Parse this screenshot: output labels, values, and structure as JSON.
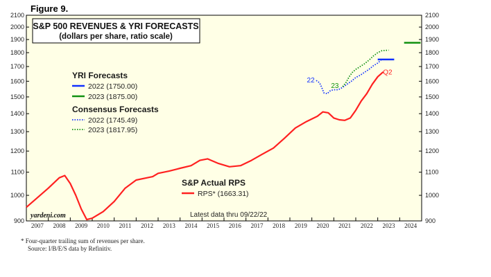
{
  "figure_label": "Figure 9.",
  "chart_data": {
    "type": "line",
    "title": "S&P 500 REVENUES & YRI FORECASTS",
    "subtitle": "(dollars per share, ratio scale)",
    "scale": "log",
    "ylim": [
      900,
      2100
    ],
    "yticks": [
      900,
      1000,
      1100,
      1200,
      1300,
      1400,
      1500,
      1600,
      1700,
      1800,
      1900,
      2000,
      2100
    ],
    "xlim": [
      2007,
      2025
    ],
    "xticks": [
      "2007",
      "2008",
      "2009",
      "2010",
      "2011",
      "2012",
      "2013",
      "2014",
      "2015",
      "2016",
      "2017",
      "2018",
      "2019",
      "2020",
      "2021",
      "2022",
      "2023",
      "2024"
    ],
    "yri_heading": "YRI Forecasts",
    "consensus_heading": "Consensus Forecasts",
    "actual_heading": "S&P Actual RPS",
    "latest_note": "Latest data thru 09/22/22",
    "source_mark": "yardeni.com",
    "colors": {
      "actual": "#ff2020",
      "yri_2022": "#1030ff",
      "yri_2023": "#109010",
      "consensus_2022": "#1030ff",
      "consensus_2023": "#109010",
      "plot_bg": "#ffffe6"
    },
    "series": [
      {
        "name": "RPS* (1663.31)",
        "style": "solid",
        "points": [
          [
            2007.0,
            952
          ],
          [
            2007.5,
            990
          ],
          [
            2008.0,
            1030
          ],
          [
            2008.5,
            1075
          ],
          [
            2008.75,
            1085
          ],
          [
            2009.0,
            1050
          ],
          [
            2009.25,
            1000
          ],
          [
            2009.5,
            945
          ],
          [
            2009.75,
            905
          ],
          [
            2010.0,
            910
          ],
          [
            2010.5,
            935
          ],
          [
            2011.0,
            975
          ],
          [
            2011.5,
            1030
          ],
          [
            2012.0,
            1065
          ],
          [
            2012.5,
            1075
          ],
          [
            2012.75,
            1080
          ],
          [
            2013.0,
            1095
          ],
          [
            2013.5,
            1105
          ],
          [
            2014.0,
            1118
          ],
          [
            2014.5,
            1130
          ],
          [
            2014.9,
            1155
          ],
          [
            2015.25,
            1162
          ],
          [
            2015.75,
            1140
          ],
          [
            2016.25,
            1125
          ],
          [
            2016.75,
            1130
          ],
          [
            2017.25,
            1155
          ],
          [
            2017.75,
            1185
          ],
          [
            2018.25,
            1215
          ],
          [
            2018.75,
            1265
          ],
          [
            2019.25,
            1320
          ],
          [
            2019.75,
            1355
          ],
          [
            2020.25,
            1385
          ],
          [
            2020.5,
            1410
          ],
          [
            2020.75,
            1405
          ],
          [
            2021.0,
            1375
          ],
          [
            2021.25,
            1365
          ],
          [
            2021.5,
            1362
          ],
          [
            2021.75,
            1375
          ],
          [
            2022.0,
            1420
          ],
          [
            2022.25,
            1475
          ],
          [
            2022.5,
            1520
          ],
          [
            2022.75,
            1580
          ],
          [
            2023.0,
            1630
          ],
          [
            2023.25,
            1663
          ]
        ]
      },
      {
        "name": "2022 (1750.00)",
        "style": "solid",
        "points": [
          [
            2023.0,
            1750
          ],
          [
            2023.75,
            1750
          ]
        ]
      },
      {
        "name": "2023 (1875.00)",
        "style": "solid",
        "points": [
          [
            2024.2,
            1875
          ],
          [
            2024.95,
            1875
          ]
        ]
      },
      {
        "name": "2022 (1745.49)",
        "style": "dotted",
        "points": [
          [
            2020.2,
            1605
          ],
          [
            2020.35,
            1590
          ],
          [
            2020.45,
            1560
          ],
          [
            2020.55,
            1525
          ],
          [
            2020.7,
            1520
          ],
          [
            2020.85,
            1540
          ],
          [
            2021.0,
            1545
          ],
          [
            2021.2,
            1545
          ],
          [
            2021.4,
            1560
          ],
          [
            2021.6,
            1580
          ],
          [
            2021.8,
            1600
          ],
          [
            2022.0,
            1625
          ],
          [
            2022.2,
            1640
          ],
          [
            2022.4,
            1660
          ],
          [
            2022.6,
            1680
          ],
          [
            2022.8,
            1705
          ],
          [
            2023.0,
            1725
          ],
          [
            2023.15,
            1745
          ]
        ]
      },
      {
        "name": "2023 (1817.95)",
        "style": "dotted",
        "points": [
          [
            2021.4,
            1565
          ],
          [
            2021.55,
            1590
          ],
          [
            2021.7,
            1630
          ],
          [
            2021.85,
            1660
          ],
          [
            2022.0,
            1680
          ],
          [
            2022.2,
            1700
          ],
          [
            2022.4,
            1720
          ],
          [
            2022.6,
            1745
          ],
          [
            2022.8,
            1775
          ],
          [
            2023.0,
            1800
          ],
          [
            2023.2,
            1815
          ],
          [
            2023.5,
            1818
          ]
        ]
      }
    ],
    "annotations": [
      {
        "text": "22",
        "x": 2019.95,
        "y": 1605,
        "color": "#1030ff"
      },
      {
        "text": "23",
        "x": 2021.05,
        "y": 1570,
        "color": "#109010"
      },
      {
        "text": "Q2",
        "x": 2023.45,
        "y": 1660,
        "color": "#ff2020"
      }
    ]
  },
  "footnote": [
    "*   Four-quarter trailing sum of revenues per share.",
    "Source: I/B/E/S data by Refinitiv."
  ]
}
